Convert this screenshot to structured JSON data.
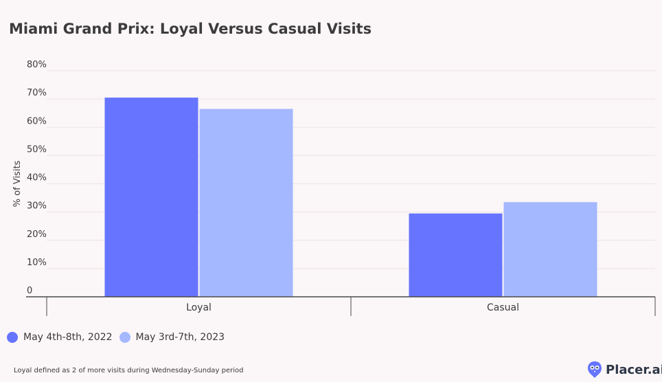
{
  "chart_data": {
    "type": "bar",
    "title": "Miami Grand Prix: Loyal Versus Casual Visits",
    "ylabel": "% of Visits",
    "xlabel": "",
    "categories": [
      "Loyal",
      "Casual"
    ],
    "series": [
      {
        "name": "May 4th-8th, 2022",
        "values": [
          70.5,
          29.5
        ],
        "color": "#6674ff"
      },
      {
        "name": "May 3rd-7th, 2023",
        "values": [
          66.5,
          33.5
        ],
        "color": "#a4b8ff"
      }
    ],
    "ylim": [
      0,
      80
    ],
    "yticks": [
      {
        "value": 0,
        "label": "0"
      },
      {
        "value": 10,
        "label": "10%"
      },
      {
        "value": 20,
        "label": "20%"
      },
      {
        "value": 30,
        "label": "30%"
      },
      {
        "value": 40,
        "label": "40%"
      },
      {
        "value": 50,
        "label": "50%"
      },
      {
        "value": 60,
        "label": "60%"
      },
      {
        "value": 70,
        "label": "70%"
      },
      {
        "value": 80,
        "label": "80%"
      }
    ],
    "grid": true,
    "legend_position": "bottom-left"
  },
  "footnote": "Loyal defined as 2 of more visits during Wednesday-Sunday period",
  "logo": {
    "text": "Placer.ai",
    "icon": "owl-icon"
  }
}
